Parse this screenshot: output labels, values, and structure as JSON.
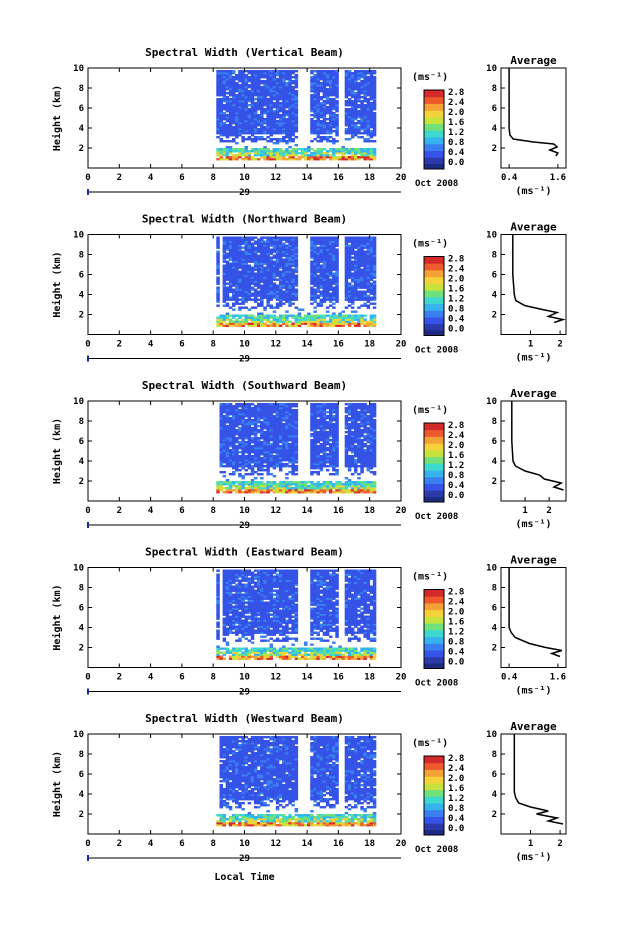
{
  "page": {
    "xlabel": "Local Time",
    "cb_unit": "(ms⁻¹)",
    "avg_title": "Average",
    "avg_xlabel": "(ms⁻¹)",
    "day_label": "29",
    "month_label": "Oct 2008",
    "ylabel": "Height (km)"
  },
  "colors": {
    "scale": [
      "#2b3aa8",
      "#3553e6",
      "#3a7ff0",
      "#36b2ee",
      "#3dd9d0",
      "#6fe07a",
      "#c7e23c",
      "#f5d23a",
      "#f4a236",
      "#ee5a2e",
      "#d42a2a"
    ],
    "background": "#ffffff"
  },
  "chart_data": [
    {
      "type": "heatmap",
      "title": "Spectral Width (Vertical Beam)",
      "xlim": [
        0,
        20
      ],
      "ylim": [
        0,
        10
      ],
      "x_ticks": [
        "0",
        "2",
        "4",
        "6",
        "8",
        "10",
        "12",
        "14",
        "16",
        "18",
        "20"
      ],
      "y_ticks": [
        "2",
        "4",
        "6",
        "8",
        "10"
      ],
      "colorbar_ticks": [
        "0.0",
        "0.4",
        "0.8",
        "1.2",
        "1.6",
        "2.0",
        "2.4",
        "2.8"
      ],
      "avg_x_ticks": [
        "0.4",
        "1.6"
      ],
      "avg_xlim": [
        0.2,
        1.8
      ],
      "avg_profile": [
        [
          1.55,
          1.2
        ],
        [
          1.6,
          1.5
        ],
        [
          1.4,
          1.8
        ],
        [
          1.58,
          2.1
        ],
        [
          1.5,
          2.4
        ],
        [
          1.0,
          2.6
        ],
        [
          0.5,
          2.9
        ],
        [
          0.42,
          3.3
        ],
        [
          0.4,
          4
        ],
        [
          0.4,
          6
        ],
        [
          0.4,
          8
        ],
        [
          0.4,
          10
        ]
      ]
    },
    {
      "type": "heatmap",
      "title": "Spectral Width (Northward Beam)",
      "xlim": [
        0,
        20
      ],
      "ylim": [
        0,
        10
      ],
      "x_ticks": [
        "0",
        "2",
        "4",
        "6",
        "8",
        "10",
        "12",
        "14",
        "16",
        "18",
        "20"
      ],
      "y_ticks": [
        "2",
        "4",
        "6",
        "8",
        "10"
      ],
      "colorbar_ticks": [
        "0.0",
        "0.4",
        "0.8",
        "1.2",
        "1.6",
        "2.0",
        "2.4",
        "2.8"
      ],
      "avg_x_ticks": [
        "1",
        "2"
      ],
      "avg_xlim": [
        0,
        2.2
      ],
      "avg_profile": [
        [
          1.8,
          1.2
        ],
        [
          2.1,
          1.5
        ],
        [
          1.6,
          1.8
        ],
        [
          1.9,
          2.2
        ],
        [
          1.4,
          2.5
        ],
        [
          0.8,
          2.9
        ],
        [
          0.5,
          3.4
        ],
        [
          0.45,
          4
        ],
        [
          0.4,
          6
        ],
        [
          0.4,
          8
        ],
        [
          0.4,
          10
        ]
      ]
    },
    {
      "type": "heatmap",
      "title": "Spectral Width (Southward Beam)",
      "xlim": [
        0,
        20
      ],
      "ylim": [
        0,
        10
      ],
      "x_ticks": [
        "0",
        "2",
        "4",
        "6",
        "8",
        "10",
        "12",
        "14",
        "16",
        "18",
        "20"
      ],
      "y_ticks": [
        "2",
        "4",
        "6",
        "8",
        "10"
      ],
      "colorbar_ticks": [
        "0.0",
        "0.4",
        "0.8",
        "1.2",
        "1.6",
        "2.0",
        "2.4",
        "2.8"
      ],
      "avg_x_ticks": [
        "1",
        "2"
      ],
      "avg_xlim": [
        0,
        2.7
      ],
      "avg_profile": [
        [
          2.6,
          1.1
        ],
        [
          2.2,
          1.4
        ],
        [
          2.5,
          1.8
        ],
        [
          1.8,
          2.2
        ],
        [
          1.6,
          2.6
        ],
        [
          1.0,
          3.0
        ],
        [
          0.6,
          3.5
        ],
        [
          0.5,
          4
        ],
        [
          0.45,
          6
        ],
        [
          0.45,
          8
        ],
        [
          0.45,
          10
        ]
      ]
    },
    {
      "type": "heatmap",
      "title": "Spectral Width (Eastward Beam)",
      "xlim": [
        0,
        20
      ],
      "ylim": [
        0,
        10
      ],
      "x_ticks": [
        "0",
        "2",
        "4",
        "6",
        "8",
        "10",
        "12",
        "14",
        "16",
        "18",
        "20"
      ],
      "y_ticks": [
        "2",
        "4",
        "6",
        "8",
        "10"
      ],
      "colorbar_ticks": [
        "0.0",
        "0.4",
        "0.8",
        "1.2",
        "1.6",
        "2.0",
        "2.4",
        "2.8"
      ],
      "avg_x_ticks": [
        "0.4",
        "1.6"
      ],
      "avg_xlim": [
        0.2,
        1.8
      ],
      "avg_profile": [
        [
          1.65,
          1.1
        ],
        [
          1.45,
          1.4
        ],
        [
          1.7,
          1.7
        ],
        [
          1.3,
          2.0
        ],
        [
          0.9,
          2.4
        ],
        [
          0.55,
          3.0
        ],
        [
          0.45,
          3.5
        ],
        [
          0.4,
          4
        ],
        [
          0.4,
          6
        ],
        [
          0.4,
          8
        ],
        [
          0.4,
          10
        ]
      ]
    },
    {
      "type": "heatmap",
      "title": "Spectral Width (Westward Beam)",
      "xlim": [
        0,
        20
      ],
      "ylim": [
        0,
        10
      ],
      "x_ticks": [
        "0",
        "2",
        "4",
        "6",
        "8",
        "10",
        "12",
        "14",
        "16",
        "18",
        "20"
      ],
      "y_ticks": [
        "2",
        "4",
        "6",
        "8",
        "10"
      ],
      "colorbar_ticks": [
        "0.0",
        "0.4",
        "0.8",
        "1.2",
        "1.6",
        "2.0",
        "2.4",
        "2.8"
      ],
      "avg_x_ticks": [
        "1",
        "2"
      ],
      "avg_xlim": [
        0,
        2.2
      ],
      "avg_profile": [
        [
          2.1,
          1.0
        ],
        [
          1.6,
          1.3
        ],
        [
          1.9,
          1.6
        ],
        [
          1.2,
          2.0
        ],
        [
          1.6,
          2.3
        ],
        [
          1.0,
          2.7
        ],
        [
          0.6,
          3.1
        ],
        [
          0.5,
          3.6
        ],
        [
          0.45,
          4.2
        ],
        [
          0.45,
          6
        ],
        [
          0.45,
          8
        ],
        [
          0.45,
          10
        ]
      ]
    }
  ]
}
